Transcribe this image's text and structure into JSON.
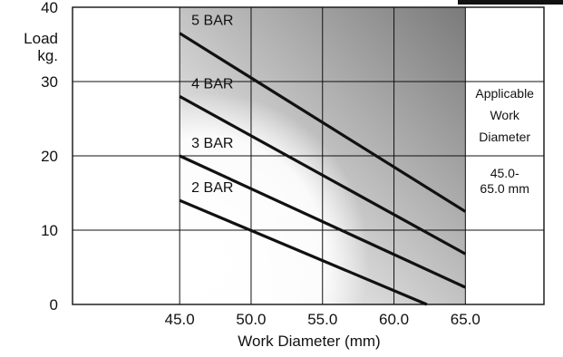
{
  "chart_data": {
    "type": "line",
    "xlabel": "Work Diameter (mm)",
    "ylabel_lines": [
      "Load",
      "kg."
    ],
    "xlim": [
      37.5,
      70.5
    ],
    "ylim": [
      0,
      40
    ],
    "x_ticks": [
      45.0,
      50.0,
      55.0,
      60.0,
      65.0
    ],
    "x_tick_labels": [
      "45.0",
      "50.0",
      "55.0",
      "60.0",
      "65.0"
    ],
    "y_ticks": [
      0,
      10,
      20,
      30,
      40
    ],
    "y_tick_labels": [
      "0",
      "10",
      "20",
      "30",
      "40"
    ],
    "grid": true,
    "shaded_region": [
      45.0,
      65.0
    ],
    "series": [
      {
        "name": "5 BAR",
        "x": [
          45.0,
          65.0
        ],
        "y": [
          36.5,
          12.5
        ]
      },
      {
        "name": "4 BAR",
        "x": [
          45.0,
          65.0
        ],
        "y": [
          28.0,
          6.8
        ]
      },
      {
        "name": "3 BAR",
        "x": [
          45.0,
          65.0
        ],
        "y": [
          20.0,
          2.3
        ]
      },
      {
        "name": "2 BAR",
        "x": [
          45.0,
          62.3
        ],
        "y": [
          14.0,
          0.0
        ]
      }
    ],
    "annotation": {
      "title_lines": [
        "Applicable",
        "Work",
        "Diameter"
      ],
      "value_lines": [
        "45.0-",
        "65.0 mm"
      ]
    }
  }
}
